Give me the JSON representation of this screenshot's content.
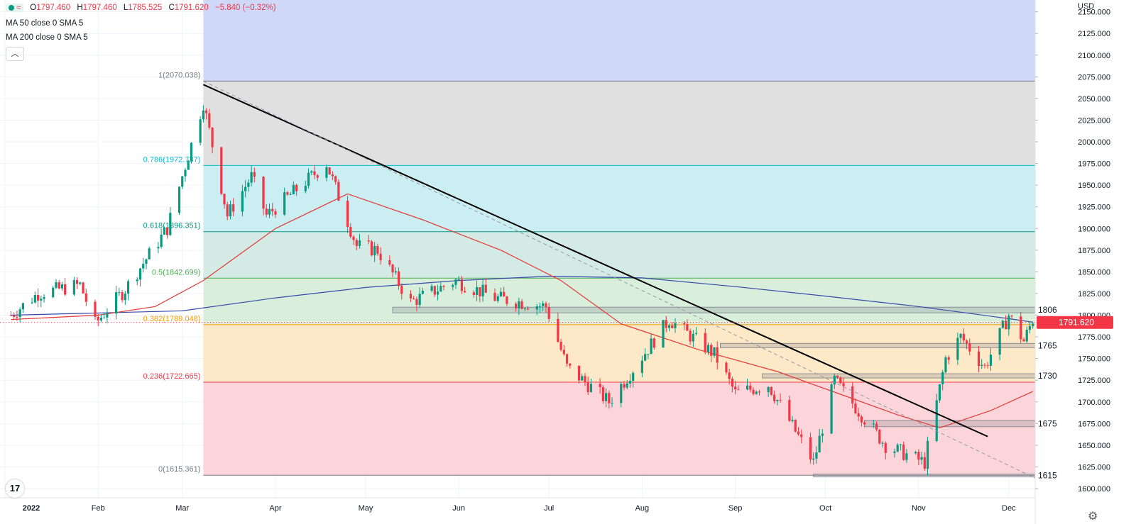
{
  "header": {
    "open_label": "O",
    "open": "1797.460",
    "high_label": "H",
    "high": "1797.460",
    "low_label": "L",
    "low": "1785.525",
    "close_label": "C",
    "close": "1791.620",
    "change": "−5.840 (−0.32%)",
    "ma1": "MA 50 close 0 SMA 5",
    "ma2": "MA 200 close 0 SMA 5",
    "collapse_icon": "chevron-up-icon",
    "currency": "USD"
  },
  "colors": {
    "up": "#089981",
    "down": "#f23645",
    "ma50": "#e53935",
    "ma200": "#3949ab",
    "trendline": "#000000",
    "price_line": "#f23645"
  },
  "chart_data": {
    "type": "candlestick",
    "x_tick_labels": [
      "2022",
      "Feb",
      "Mar",
      "Apr",
      "May",
      "Jun",
      "Jul",
      "Aug",
      "Sep",
      "Oct",
      "Nov",
      "Dec"
    ],
    "y_ticks": [
      1600,
      1625,
      1650,
      1675,
      1700,
      1725,
      1750,
      1775,
      1800,
      1825,
      1850,
      1875,
      1900,
      1925,
      1950,
      1975,
      2000,
      2025,
      2050,
      2075,
      2100,
      2125,
      2150
    ],
    "y_tick_labels": [
      "1600.000",
      "1625.000",
      "1650.000",
      "1675.000",
      "1700.000",
      "1725.000",
      "1750.000",
      "1775.000",
      "1800.000",
      "1825.000",
      "1850.000",
      "1875.000",
      "1900.000",
      "1925.000",
      "1950.000",
      "1975.000",
      "2000.000",
      "2025.000",
      "2050.000",
      "2075.000",
      "2100.000",
      "2125.000",
      "2150.000"
    ],
    "ylim": [
      1593,
      2165
    ],
    "last_price": 1791.62,
    "last_price_label": "1791.620",
    "fibonacci": [
      {
        "level": "1",
        "price": 2070.038,
        "label": "1(2070.038)",
        "color": "#787b86"
      },
      {
        "level": "0.786",
        "price": 1972.737,
        "label": "0.786(1972.737)",
        "color": "#00bcd4"
      },
      {
        "level": "0.618",
        "price": 1896.351,
        "label": "0.618(1896.351)",
        "color": "#089981"
      },
      {
        "level": "0.5",
        "price": 1842.699,
        "label": "0.5(1842.699)",
        "color": "#4caf50"
      },
      {
        "level": "0.382",
        "price": 1789.048,
        "label": "0.382(1789.048)",
        "color": "#ff9800"
      },
      {
        "level": "0.236",
        "price": 1722.665,
        "label": "0.236(1722.665)",
        "color": "#f23645"
      },
      {
        "level": "0",
        "price": 1615.361,
        "label": "0(1615.361)",
        "color": "#787b86"
      }
    ],
    "levels": [
      {
        "label": "1806",
        "price": 1806
      },
      {
        "label": "1765",
        "price": 1765
      },
      {
        "label": "1730",
        "price": 1730
      },
      {
        "label": "1675",
        "price": 1675
      },
      {
        "label": "1615",
        "price": 1615
      }
    ],
    "trendline": [
      {
        "date": "2022-03-08",
        "price": 2066
      },
      {
        "date": "2022-11-24",
        "price": 1660
      }
    ],
    "pivots": [
      {
        "date": "2022-01-03",
        "price": 1800
      },
      {
        "date": "2022-01-12",
        "price": 1825
      },
      {
        "date": "2022-01-26",
        "price": 1835
      },
      {
        "date": "2022-01-31",
        "price": 1790
      },
      {
        "date": "2022-02-10",
        "price": 1830
      },
      {
        "date": "2022-02-24",
        "price": 1900
      },
      {
        "date": "2022-03-08",
        "price": 2045
      },
      {
        "date": "2022-03-16",
        "price": 1915
      },
      {
        "date": "2022-03-24",
        "price": 1960
      },
      {
        "date": "2022-03-29",
        "price": 1915
      },
      {
        "date": "2022-04-18",
        "price": 1975
      },
      {
        "date": "2022-04-28",
        "price": 1880
      },
      {
        "date": "2022-05-05",
        "price": 1875
      },
      {
        "date": "2022-05-16",
        "price": 1815
      },
      {
        "date": "2022-05-31",
        "price": 1840
      },
      {
        "date": "2022-06-13",
        "price": 1820
      },
      {
        "date": "2022-06-30",
        "price": 1810
      },
      {
        "date": "2022-07-07",
        "price": 1740
      },
      {
        "date": "2022-07-21",
        "price": 1700
      },
      {
        "date": "2022-08-10",
        "price": 1795
      },
      {
        "date": "2022-08-25",
        "price": 1755
      },
      {
        "date": "2022-09-01",
        "price": 1710
      },
      {
        "date": "2022-09-12",
        "price": 1720
      },
      {
        "date": "2022-09-27",
        "price": 1630
      },
      {
        "date": "2022-10-04",
        "price": 1725
      },
      {
        "date": "2022-10-21",
        "price": 1650
      },
      {
        "date": "2022-11-03",
        "price": 1630
      },
      {
        "date": "2022-11-10",
        "price": 1750
      },
      {
        "date": "2022-11-15",
        "price": 1775
      },
      {
        "date": "2022-11-23",
        "price": 1740
      },
      {
        "date": "2022-12-01",
        "price": 1800
      },
      {
        "date": "2022-12-06",
        "price": 1770
      },
      {
        "date": "2022-12-09",
        "price": 1795
      }
    ],
    "ma50": [
      {
        "date": "2022-01-03",
        "price": 1795
      },
      {
        "date": "2022-02-01",
        "price": 1800
      },
      {
        "date": "2022-02-20",
        "price": 1810
      },
      {
        "date": "2022-03-08",
        "price": 1840
      },
      {
        "date": "2022-04-01",
        "price": 1900
      },
      {
        "date": "2022-04-25",
        "price": 1940
      },
      {
        "date": "2022-05-20",
        "price": 1910
      },
      {
        "date": "2022-06-15",
        "price": 1875
      },
      {
        "date": "2022-07-05",
        "price": 1840
      },
      {
        "date": "2022-07-25",
        "price": 1790
      },
      {
        "date": "2022-08-20",
        "price": 1760
      },
      {
        "date": "2022-09-15",
        "price": 1735
      },
      {
        "date": "2022-10-05",
        "price": 1710
      },
      {
        "date": "2022-10-25",
        "price": 1685
      },
      {
        "date": "2022-11-08",
        "price": 1670
      },
      {
        "date": "2022-11-25",
        "price": 1690
      },
      {
        "date": "2022-12-09",
        "price": 1712
      }
    ],
    "ma200": [
      {
        "date": "2022-01-03",
        "price": 1800
      },
      {
        "date": "2022-03-01",
        "price": 1805
      },
      {
        "date": "2022-04-01",
        "price": 1820
      },
      {
        "date": "2022-05-01",
        "price": 1832
      },
      {
        "date": "2022-06-01",
        "price": 1840
      },
      {
        "date": "2022-07-01",
        "price": 1845
      },
      {
        "date": "2022-08-01",
        "price": 1843
      },
      {
        "date": "2022-09-01",
        "price": 1833
      },
      {
        "date": "2022-10-01",
        "price": 1822
      },
      {
        "date": "2022-11-01",
        "price": 1810
      },
      {
        "date": "2022-12-01",
        "price": 1796
      },
      {
        "date": "2022-12-09",
        "price": 1792
      }
    ]
  }
}
